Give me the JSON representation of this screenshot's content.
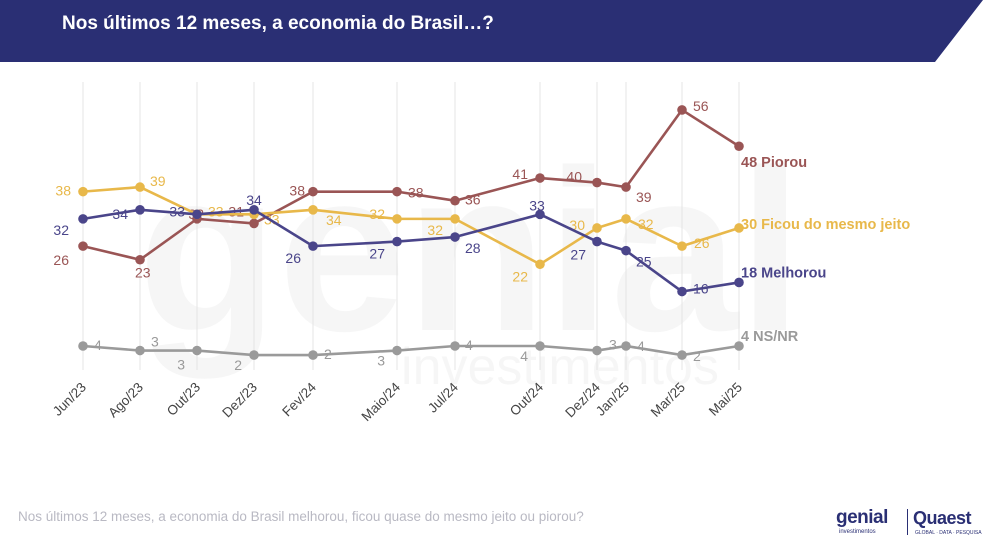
{
  "header": {
    "title": "Nos últimos 12 meses, a economia do Brasil…?"
  },
  "footer": {
    "question": "Nos últimos 12 meses, a economia do Brasil melhorou, ficou quase do mesmo jeito ou piorou?"
  },
  "logos": {
    "genial": "genial",
    "genial_sub": "investimentos",
    "quaest": "Quaest",
    "quaest_sub": "GLOBAL · DATA · PESQUISA"
  },
  "colors": {
    "header_band": "#2a2f74",
    "piorou": "#9a5555",
    "mesmo_jeito": "#e8b84a",
    "melhorou": "#4a458a",
    "nsnr": "#9a9a9a",
    "gridline": "#e4e4e4"
  },
  "chart_data": {
    "type": "line",
    "title": "Nos últimos 12 meses, a economia do Brasil…?",
    "categories": [
      "Jun/23",
      "Ago/23",
      "Out/23",
      "Dez/23",
      "Fev/24",
      "Maio/24",
      "Jul/24",
      "Out/24",
      "Dez/24",
      "Jan/25",
      "Mar/25",
      "Mai/25"
    ],
    "ylim": [
      0,
      60
    ],
    "grid": true,
    "legend": "end-of-line labels",
    "series": [
      {
        "name": "Piorou",
        "key": "piorou",
        "values": [
          26,
          23,
          32,
          31,
          38,
          38,
          36,
          41,
          40,
          39,
          56,
          48
        ],
        "end_label": "48 Piorou"
      },
      {
        "name": "Ficou do mesmo jeito",
        "key": "mesmo_jeito",
        "values": [
          38,
          39,
          33,
          33,
          34,
          32,
          32,
          22,
          30,
          32,
          26,
          30
        ],
        "end_label": "30 Ficou do mesmo jeito"
      },
      {
        "name": "Melhorou",
        "key": "melhorou",
        "values": [
          32,
          34,
          33,
          34,
          26,
          27,
          28,
          33,
          27,
          25,
          16,
          18
        ],
        "end_label": "18 Melhorou"
      },
      {
        "name": "NS/NR",
        "key": "nsnr",
        "values": [
          4,
          3,
          3,
          2,
          2,
          3,
          4,
          4,
          3,
          4,
          2,
          4
        ],
        "end_label": "4 NS/NR"
      }
    ]
  }
}
